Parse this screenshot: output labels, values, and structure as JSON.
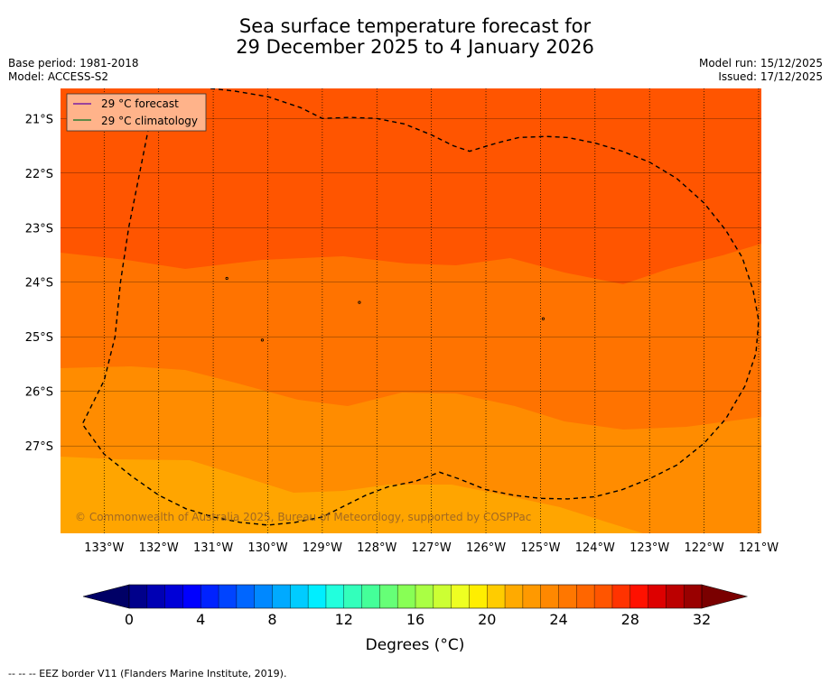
{
  "title": {
    "line1": "Sea surface temperature forecast for",
    "line2": "29 December 2025 to 4 January 2026"
  },
  "meta": {
    "base_period": "Base period: 1981-2018",
    "model": "Model: ACCESS-S2",
    "model_run": "Model run: 15/12/2025",
    "issued": "Issued: 17/12/2025"
  },
  "legend": {
    "forecast": "29 °C  forecast",
    "climatology": "29 °C  climatology",
    "forecast_color": "#7a1fa2",
    "climatology_color": "#2e7d32"
  },
  "copyright": "© Commonwealth of Australia 2025, Bureau of Meteorology, supported by COSPPac",
  "map": {
    "lon_range": [
      -133.8,
      -120.95
    ],
    "lat_range": [
      -28.6,
      -20.45
    ],
    "lon_ticks": [
      -133,
      -132,
      -131,
      -130,
      -129,
      -128,
      -127,
      -126,
      -125,
      -124,
      -123,
      -122,
      -121
    ],
    "lon_labels": [
      "133°W",
      "132°W",
      "131°W",
      "130°W",
      "129°W",
      "128°W",
      "127°W",
      "126°W",
      "125°W",
      "124°W",
      "123°W",
      "122°W",
      "121°W"
    ],
    "lat_ticks": [
      -21,
      -22,
      -23,
      -24,
      -25,
      -26,
      -27
    ],
    "lat_labels": [
      "21°S",
      "22°S",
      "23°S",
      "24°S",
      "25°S",
      "26°S",
      "27°S"
    ],
    "band_colors": {
      "above_28": "#ff5500",
      "27_to_28": "#ff7300",
      "26_to_27": "#ff8c00",
      "25_to_26": "#ffa500"
    },
    "eez_border": [
      [
        -131.05,
        -20.45
      ],
      [
        -130.6,
        -20.5
      ],
      [
        -130.0,
        -20.6
      ],
      [
        -129.4,
        -20.8
      ],
      [
        -129.0,
        -21.0
      ],
      [
        -128.5,
        -20.98
      ],
      [
        -128.0,
        -21.0
      ],
      [
        -127.5,
        -21.1
      ],
      [
        -127.0,
        -21.3
      ],
      [
        -126.6,
        -21.5
      ],
      [
        -126.3,
        -21.6
      ],
      [
        -125.8,
        -21.45
      ],
      [
        -125.4,
        -21.35
      ],
      [
        -124.9,
        -21.33
      ],
      [
        -124.5,
        -21.35
      ],
      [
        -124.0,
        -21.45
      ],
      [
        -123.5,
        -21.6
      ],
      [
        -123.0,
        -21.8
      ],
      [
        -122.5,
        -22.1
      ],
      [
        -122.0,
        -22.55
      ],
      [
        -121.6,
        -23.05
      ],
      [
        -121.3,
        -23.55
      ],
      [
        -121.1,
        -24.15
      ],
      [
        -121.0,
        -24.7
      ],
      [
        -121.05,
        -25.3
      ],
      [
        -121.25,
        -25.9
      ],
      [
        -121.6,
        -26.5
      ],
      [
        -122.0,
        -26.95
      ],
      [
        -122.5,
        -27.35
      ],
      [
        -123.0,
        -27.6
      ],
      [
        -123.5,
        -27.8
      ],
      [
        -124.0,
        -27.93
      ],
      [
        -124.5,
        -27.97
      ],
      [
        -125.0,
        -27.96
      ],
      [
        -125.5,
        -27.9
      ],
      [
        -126.0,
        -27.8
      ],
      [
        -126.5,
        -27.6
      ],
      [
        -126.85,
        -27.48
      ],
      [
        -127.3,
        -27.65
      ],
      [
        -127.8,
        -27.75
      ],
      [
        -128.2,
        -27.9
      ],
      [
        -128.6,
        -28.1
      ],
      [
        -129.0,
        -28.3
      ],
      [
        -129.5,
        -28.4
      ],
      [
        -130.0,
        -28.45
      ],
      [
        -130.5,
        -28.4
      ],
      [
        -131.0,
        -28.3
      ],
      [
        -131.5,
        -28.15
      ],
      [
        -132.0,
        -27.9
      ],
      [
        -132.5,
        -27.55
      ],
      [
        -133.0,
        -27.15
      ],
      [
        -133.4,
        -26.6
      ],
      [
        -133.0,
        -25.8
      ],
      [
        -132.8,
        -25.0
      ],
      [
        -132.7,
        -24.0
      ],
      [
        -132.55,
        -23.0
      ],
      [
        -132.35,
        -22.0
      ],
      [
        -132.15,
        -21.0
      ],
      [
        -132.05,
        -20.65
      ]
    ],
    "islands": [
      [
        -128.32,
        -24.37
      ],
      [
        -124.95,
        -24.67
      ],
      [
        -130.75,
        -23.93
      ],
      [
        -130.1,
        -25.06
      ]
    ]
  },
  "colorbar": {
    "min": 0,
    "max": 32,
    "step": 1,
    "tick_values": [
      0,
      4,
      8,
      12,
      16,
      20,
      24,
      28,
      32
    ],
    "tick_labels": [
      "0",
      "4",
      "8",
      "12",
      "16",
      "20",
      "24",
      "28",
      "32"
    ],
    "colors": [
      "#00008b",
      "#0000b4",
      "#0000d7",
      "#0000ff",
      "#0022ff",
      "#0044ff",
      "#0066ff",
      "#0088ff",
      "#00aaff",
      "#00ccff",
      "#00eeff",
      "#22ffdd",
      "#33ffbb",
      "#44ff99",
      "#66ff77",
      "#88ff55",
      "#aaff44",
      "#ccff33",
      "#eeff22",
      "#ffee00",
      "#ffcc00",
      "#ffaa00",
      "#ff9900",
      "#ff8800",
      "#ff7700",
      "#ff6600",
      "#ff5500",
      "#ff3300",
      "#ff1100",
      "#dd0000",
      "#bb0000",
      "#990000"
    ],
    "under_color": "#000066",
    "over_color": "#7a0000",
    "label": "Degrees (°C)"
  },
  "footer": "-- -- -- EEZ border V11 (Flanders Marine Institute, 2019)."
}
